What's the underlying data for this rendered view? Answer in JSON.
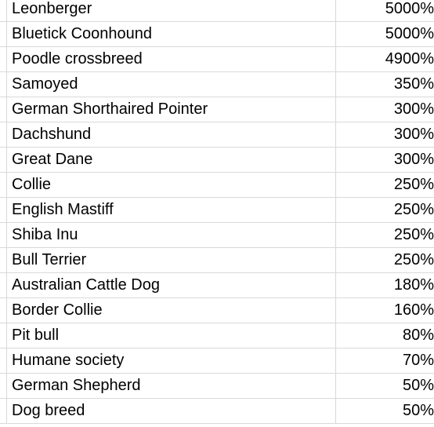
{
  "sheet": {
    "rows": [
      {
        "name": "Leonberger",
        "value": "5000%"
      },
      {
        "name": "Bluetick Coonhound",
        "value": "5000%"
      },
      {
        "name": "Poodle crossbreed",
        "value": "4900%"
      },
      {
        "name": "Samoyed",
        "value": "350%"
      },
      {
        "name": "German Shorthaired Pointer",
        "value": "300%"
      },
      {
        "name": "Dachshund",
        "value": "300%"
      },
      {
        "name": "Great Dane",
        "value": "300%"
      },
      {
        "name": "Collie",
        "value": "250%"
      },
      {
        "name": "English Mastiff",
        "value": "250%"
      },
      {
        "name": "Shiba Inu",
        "value": "250%"
      },
      {
        "name": "Bull Terrier",
        "value": "250%"
      },
      {
        "name": "Australian Cattle Dog",
        "value": "180%"
      },
      {
        "name": "Border Collie",
        "value": "160%"
      },
      {
        "name": "Pit bull",
        "value": "80%"
      },
      {
        "name": "Humane society",
        "value": "70%"
      },
      {
        "name": "German Shepherd",
        "value": "50%"
      },
      {
        "name": "Dog breed",
        "value": "50%"
      }
    ]
  }
}
